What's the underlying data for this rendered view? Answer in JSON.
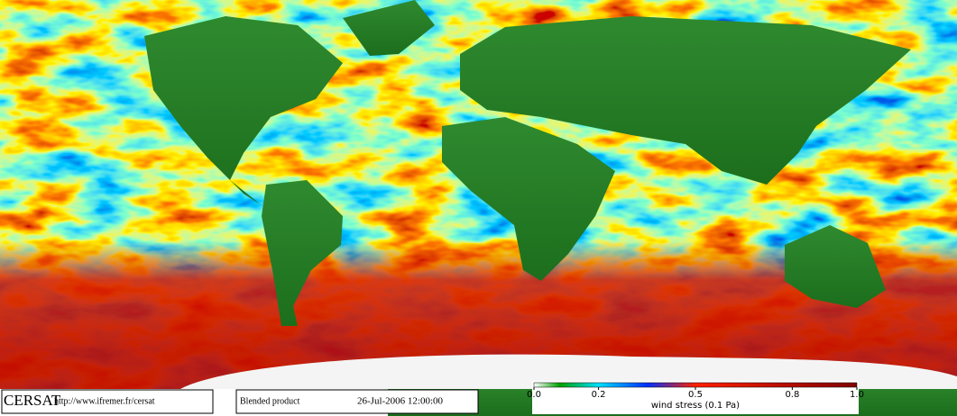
{
  "logo": "CERSAT",
  "url": "http://www.ifremer.fr/cersat",
  "product": "Blended product",
  "date": "26-Jul-2006 12:00:00",
  "colorbar": {
    "label": "wind stress (0.1 Pa)",
    "lim": [
      0,
      1
    ],
    "ticks": [
      {
        "value": 0,
        "label": "0.0"
      },
      0.2,
      0.5,
      0.8,
      {
        "value": 1,
        "label": "1.0"
      }
    ]
  }
}
